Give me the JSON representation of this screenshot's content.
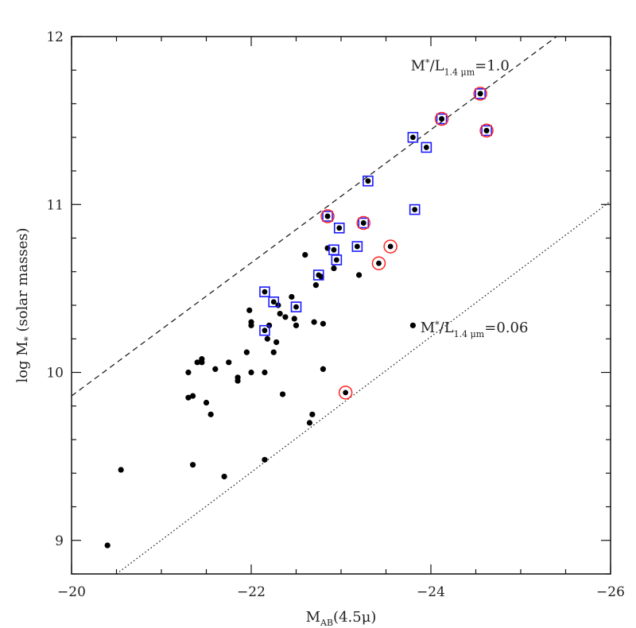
{
  "chart_data": {
    "type": "scatter",
    "xlabel": "M_AB(4.5μ)",
    "xlabel_main": "M",
    "xlabel_sub": "AB",
    "xlabel_rest": "(4.5μ)",
    "ylabel": "log M* (solar masses)",
    "ylabel_main": "log M",
    "ylabel_sub": "*",
    "ylabel_rest": " (solar masses)",
    "xlim": [
      -20,
      -26
    ],
    "ylim": [
      8.8,
      12
    ],
    "x_ticks": [
      -20,
      -22,
      -24,
      -26
    ],
    "x_tick_labels": [
      "−20",
      "−22",
      "−24",
      "−26"
    ],
    "y_ticks": [
      9,
      10,
      11,
      12
    ],
    "y_tick_labels": [
      "9",
      "10",
      "11",
      "12"
    ],
    "grid": false,
    "series": [
      {
        "marker": "filled-circle",
        "color": "#000000",
        "points": [
          [
            -20.4,
            8.97
          ],
          [
            -20.55,
            9.42
          ],
          [
            -21.35,
            9.45
          ],
          [
            -21.7,
            9.38
          ],
          [
            -22.15,
            9.48
          ],
          [
            -21.3,
            10.0
          ],
          [
            -21.3,
            9.85
          ],
          [
            -21.35,
            9.86
          ],
          [
            -21.4,
            10.06
          ],
          [
            -21.45,
            10.08
          ],
          [
            -21.45,
            10.06
          ],
          [
            -21.5,
            9.82
          ],
          [
            -21.55,
            9.75
          ],
          [
            -21.6,
            10.02
          ],
          [
            -21.75,
            10.06
          ],
          [
            -21.85,
            9.95
          ],
          [
            -21.85,
            9.97
          ],
          [
            -21.95,
            10.12
          ],
          [
            -21.98,
            10.37
          ],
          [
            -22.0,
            10.28
          ],
          [
            -22.0,
            10.3
          ],
          [
            -22.0,
            10.0
          ],
          [
            -22.15,
            10.0
          ],
          [
            -22.18,
            10.2
          ],
          [
            -22.2,
            10.28
          ],
          [
            -22.25,
            10.12
          ],
          [
            -22.28,
            10.18
          ],
          [
            -22.3,
            10.4
          ],
          [
            -22.32,
            10.35
          ],
          [
            -22.35,
            9.87
          ],
          [
            -22.38,
            10.33
          ],
          [
            -22.45,
            10.45
          ],
          [
            -22.48,
            10.32
          ],
          [
            -22.5,
            10.28
          ],
          [
            -22.6,
            10.7
          ],
          [
            -22.65,
            9.7
          ],
          [
            -22.68,
            9.75
          ],
          [
            -22.7,
            10.3
          ],
          [
            -22.72,
            10.52
          ],
          [
            -22.78,
            10.57
          ],
          [
            -22.8,
            10.02
          ],
          [
            -22.8,
            10.29
          ],
          [
            -22.85,
            10.74
          ],
          [
            -22.92,
            10.62
          ],
          [
            -23.2,
            10.58
          ],
          [
            -23.8,
            10.28
          ]
        ]
      },
      {
        "marker": "open-square-blue",
        "color": "#1a1aff",
        "points": [
          [
            -22.15,
            10.48
          ],
          [
            -22.15,
            10.25
          ],
          [
            -22.25,
            10.42
          ],
          [
            -22.5,
            10.39
          ],
          [
            -22.75,
            10.58
          ],
          [
            -22.92,
            10.73
          ],
          [
            -22.95,
            10.67
          ],
          [
            -22.98,
            10.86
          ],
          [
            -23.18,
            10.75
          ],
          [
            -23.3,
            11.14
          ],
          [
            -23.82,
            10.97
          ],
          [
            -23.8,
            11.4
          ],
          [
            -23.95,
            11.34
          ],
          [
            -22.85,
            10.93
          ],
          [
            -23.25,
            10.89
          ],
          [
            -24.12,
            11.51
          ],
          [
            -24.55,
            11.66
          ],
          [
            -24.62,
            11.44
          ]
        ]
      },
      {
        "marker": "open-circle-red",
        "color": "#ff2222",
        "points": [
          [
            -22.85,
            10.93
          ],
          [
            -23.25,
            10.89
          ],
          [
            -23.05,
            9.88
          ],
          [
            -23.42,
            10.65
          ],
          [
            -23.55,
            10.75
          ],
          [
            -24.12,
            11.51
          ],
          [
            -24.55,
            11.66
          ],
          [
            -24.62,
            11.44
          ]
        ]
      }
    ],
    "lines": [
      {
        "style": "dashed",
        "label_main": "M",
        "label_star": "*",
        "label_slash": "/L",
        "label_sub": "1.4 μm",
        "label_value": "=1.0",
        "points": [
          [
            -20,
            9.86
          ],
          [
            -25.4,
            12.0
          ]
        ]
      },
      {
        "style": "dotted",
        "label_main": "M",
        "label_star": "*",
        "label_slash": "/L",
        "label_sub": "1.4 μm",
        "label_value": "=0.06",
        "points": [
          [
            -20.5,
            8.8
          ],
          [
            -26,
            11.02
          ]
        ]
      }
    ]
  }
}
